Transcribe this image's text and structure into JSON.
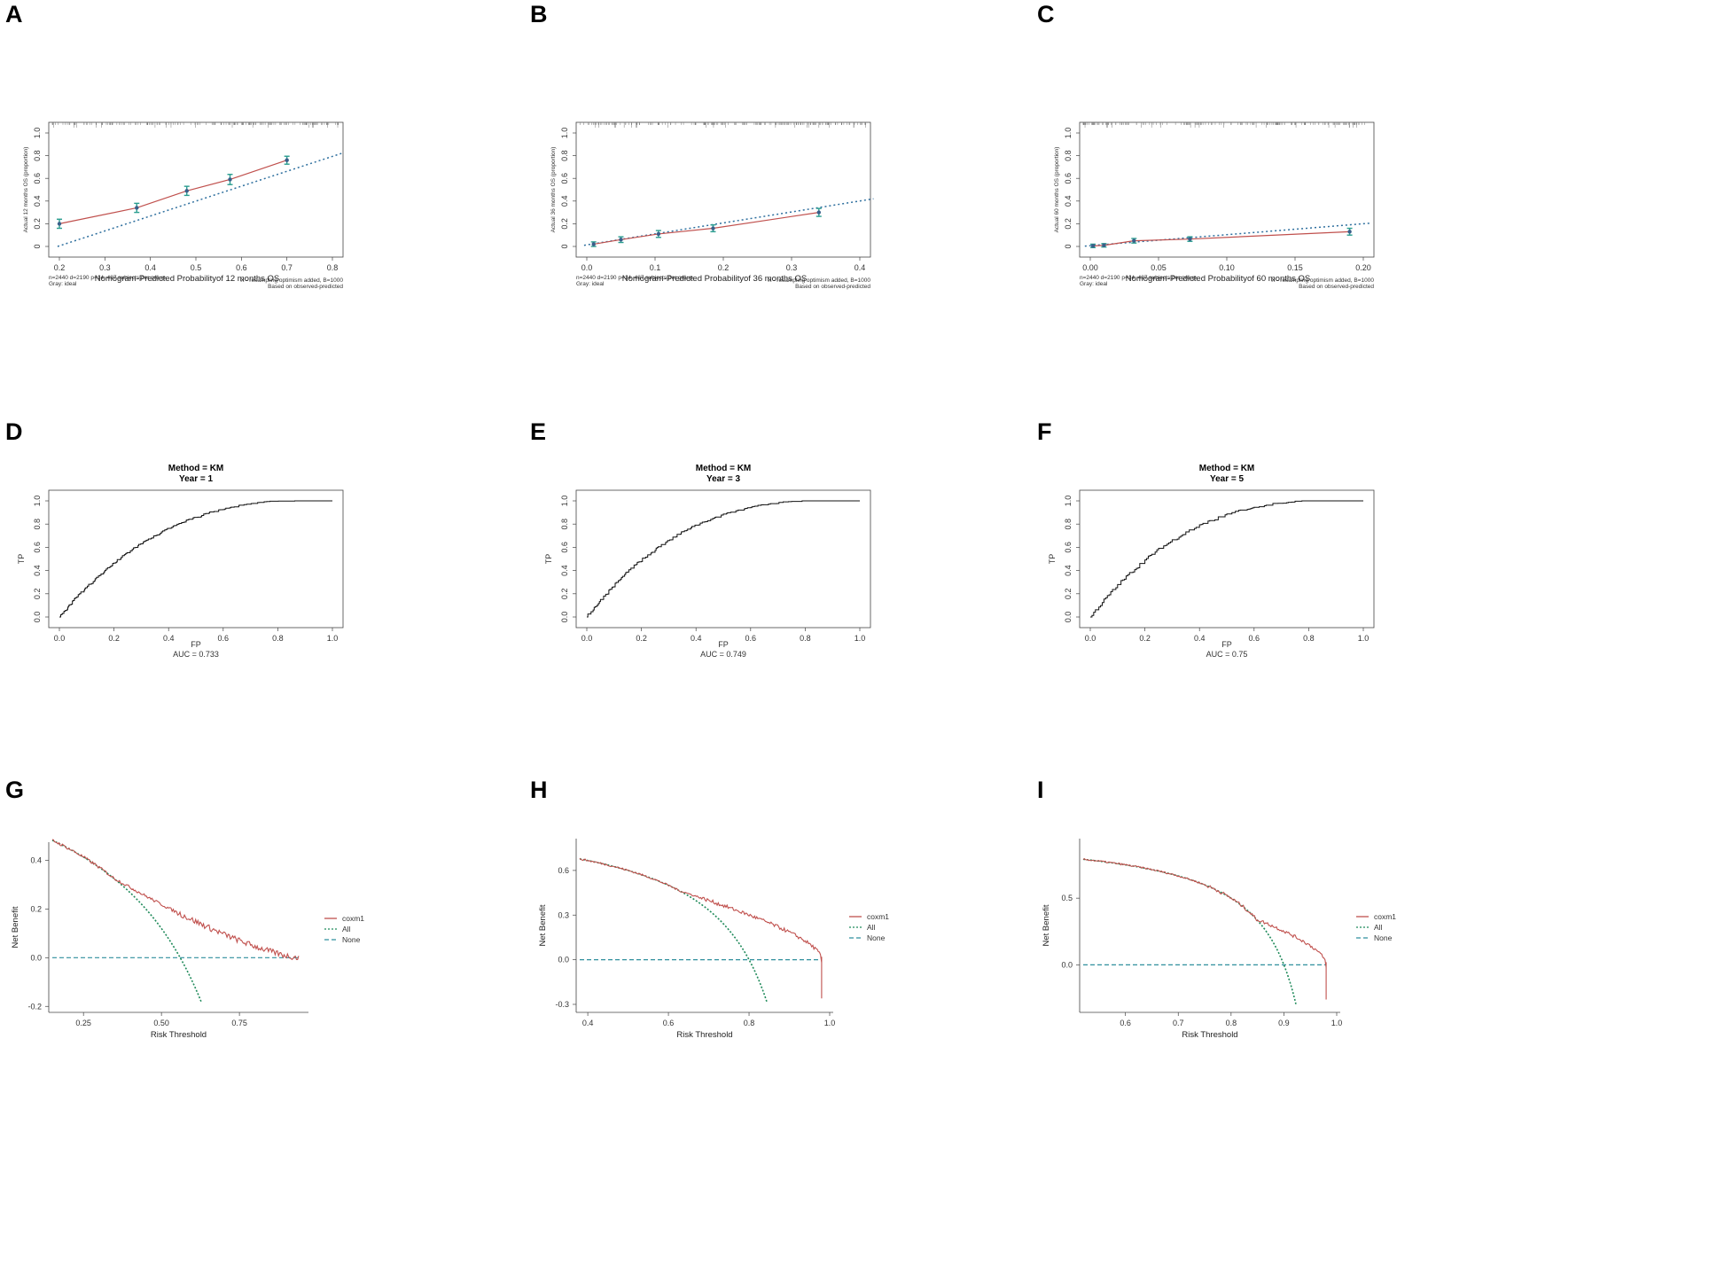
{
  "panels": [
    {
      "letter": "A",
      "type": "calibration",
      "months": "12",
      "ylabel": "Actual 12 months OS (proportion)",
      "xlabel": "Nomogram-Predicted Probabilityof 12 months OS",
      "note_left1": "n=2440 d=2190 p=14, 487 subjects per group",
      "note_left2": "Gray: ideal",
      "note_right1": "X - resampling optimism added, B=1000",
      "note_right2": "Based on observed-predicted",
      "xlim": [
        0.2,
        0.8
      ],
      "ylim": [
        0,
        1
      ],
      "xticks": [
        "0.2",
        "0.3",
        "0.4",
        "0.5",
        "0.6",
        "0.7",
        "0.8"
      ],
      "yticks": [
        "0",
        "0.2",
        "0.4",
        "0.6",
        "0.8",
        "1.0"
      ],
      "points": [
        [
          0.2,
          0.2
        ],
        [
          0.37,
          0.34
        ],
        [
          0.48,
          0.49
        ],
        [
          0.575,
          0.59
        ],
        [
          0.7,
          0.76
        ]
      ],
      "err": [
        0.04,
        0.04,
        0.04,
        0.045,
        0.035
      ],
      "ideal_end": [
        0.82,
        0.82
      ]
    },
    {
      "letter": "B",
      "type": "calibration",
      "months": "36",
      "ylabel": "Actual 36 months OS (proportion)",
      "xlabel": "Nomogram-Predicted Probabilityof 36 months OS",
      "note_left1": "n=2440 d=2190 p=14, 487 subjects per group",
      "note_left2": "Gray: ideal",
      "note_right1": "X - resampling optimism added, B=1000",
      "note_right2": "Based on observed-predicted",
      "xlim": [
        0,
        0.4
      ],
      "ylim": [
        0,
        1
      ],
      "xticks": [
        "0.0",
        "0.1",
        "0.2",
        "0.3",
        "0.4"
      ],
      "yticks": [
        "0",
        "0.2",
        "0.4",
        "0.6",
        "0.8",
        "1.0"
      ],
      "points": [
        [
          0.01,
          0.02
        ],
        [
          0.05,
          0.06
        ],
        [
          0.105,
          0.11
        ],
        [
          0.185,
          0.16
        ],
        [
          0.34,
          0.3
        ]
      ],
      "err": [
        0.02,
        0.025,
        0.03,
        0.03,
        0.035
      ],
      "ideal_end": [
        0.42,
        0.42
      ]
    },
    {
      "letter": "C",
      "type": "calibration",
      "months": "60",
      "ylabel": "Actual 60 months OS (proportion)",
      "xlabel": "Nomogram-Predicted Probabilityof 60 months OS",
      "note_left1": "n=2440 d=2190 p=14, 487 subjects per group",
      "note_left2": "Gray: ideal",
      "note_right1": "X - resampling optimism added, B=1000",
      "note_right2": "Based on observed-predicted",
      "xlim": [
        0,
        0.2
      ],
      "ylim": [
        0,
        1
      ],
      "xticks": [
        "0.00",
        "0.05",
        "0.10",
        "0.15",
        "0.20"
      ],
      "yticks": [
        "0",
        "0.2",
        "0.4",
        "0.6",
        "0.8",
        "1.0"
      ],
      "points": [
        [
          0.002,
          0.005
        ],
        [
          0.01,
          0.01
        ],
        [
          0.032,
          0.05
        ],
        [
          0.073,
          0.065
        ],
        [
          0.19,
          0.13
        ]
      ],
      "err": [
        0.015,
        0.015,
        0.02,
        0.02,
        0.03
      ],
      "ideal_end": [
        0.205,
        0.205
      ]
    },
    {
      "letter": "D",
      "type": "roc",
      "title1": "Method = KM",
      "title2": "Year = 1",
      "xlabel": "FP",
      "ylabel": "TP",
      "auc": "AUC = 0.733",
      "auc_val": 0.733,
      "xticks": [
        "0.0",
        "0.2",
        "0.4",
        "0.6",
        "0.8",
        "1.0"
      ],
      "yticks": [
        "0.0",
        "0.2",
        "0.4",
        "0.6",
        "0.8",
        "1.0"
      ]
    },
    {
      "letter": "E",
      "type": "roc",
      "title1": "Method = KM",
      "title2": "Year = 3",
      "xlabel": "FP",
      "ylabel": "TP",
      "auc": "AUC = 0.749",
      "auc_val": 0.749,
      "xticks": [
        "0.0",
        "0.2",
        "0.4",
        "0.6",
        "0.8",
        "1.0"
      ],
      "yticks": [
        "0.0",
        "0.2",
        "0.4",
        "0.6",
        "0.8",
        "1.0"
      ]
    },
    {
      "letter": "F",
      "type": "roc",
      "title1": "Method = KM",
      "title2": "Year = 5",
      "xlabel": "FP",
      "ylabel": "TP",
      "auc": "AUC = 0.75",
      "auc_val": 0.75,
      "xticks": [
        "0.0",
        "0.2",
        "0.4",
        "0.6",
        "0.8",
        "1.0"
      ],
      "yticks": [
        "0.0",
        "0.2",
        "0.4",
        "0.6",
        "0.8",
        "1.0"
      ]
    },
    {
      "letter": "G",
      "type": "dca",
      "xlabel": "Risk Threshold",
      "ylabel": "Net Benefit",
      "xlim": [
        0.15,
        0.96
      ],
      "ylim": [
        -0.21,
        0.46
      ],
      "xticks": [
        [
          "0.25",
          0.25
        ],
        [
          "0.50",
          0.5
        ],
        [
          "0.75",
          0.75
        ]
      ],
      "yticks": [
        [
          "-0.2",
          -0.2
        ],
        [
          "0.0",
          0.0
        ],
        [
          "0.2",
          0.2
        ],
        [
          "0.4",
          0.4
        ]
      ],
      "prev": 0.56,
      "legend": [
        "coxm1",
        "All",
        "None"
      ]
    },
    {
      "letter": "H",
      "type": "dca",
      "xlabel": "Risk Threshold",
      "ylabel": "Net Benefit",
      "xlim": [
        0.38,
        1.0
      ],
      "ylim": [
        -0.33,
        0.79
      ],
      "xticks": [
        [
          "0.4",
          0.4
        ],
        [
          "0.6",
          0.6
        ],
        [
          "0.8",
          0.8
        ],
        [
          "1.0",
          1.0
        ]
      ],
      "yticks": [
        [
          "-0.3",
          -0.3
        ],
        [
          "0.0",
          0.0
        ],
        [
          "0.3",
          0.3
        ],
        [
          "0.6",
          0.6
        ]
      ],
      "prev": 0.8,
      "legend": [
        "coxm1",
        "All",
        "None"
      ]
    },
    {
      "letter": "I",
      "type": "dca",
      "xlabel": "Risk Threshold",
      "ylabel": "Net Benefit",
      "xlim": [
        0.52,
        1.0
      ],
      "ylim": [
        -0.33,
        0.92
      ],
      "xticks": [
        [
          "0.6",
          0.6
        ],
        [
          "0.7",
          0.7
        ],
        [
          "0.8",
          0.8
        ],
        [
          "0.9",
          0.9
        ],
        [
          "1.0",
          1.0
        ]
      ],
      "yticks": [
        [
          "0.0",
          0.0
        ],
        [
          "0.5",
          0.5
        ]
      ],
      "prev": 0.9,
      "legend": [
        "coxm1",
        "All",
        "None"
      ]
    }
  ],
  "colors": {
    "model_red": "#c0504d",
    "ideal_blue": "#2e6f9e",
    "err_teal": "#2a9d8f",
    "all_green": "#1f8a5a",
    "none_teal": "#2f8f9d",
    "roc_black": "#111111",
    "axis": "#444444"
  },
  "chart_data": [
    {
      "type": "line",
      "title": "",
      "xlabel": "Nomogram-Predicted Probabilityof 12 months OS",
      "ylabel": "Actual 12 months OS (proportion)",
      "xlim": [
        0.2,
        0.8
      ],
      "ylim": [
        0,
        1
      ],
      "series": [],
      "x": [
        0.2,
        0.37,
        0.48,
        0.575,
        0.7
      ],
      "values": [
        0.2,
        0.34,
        0.49,
        0.59,
        0.76
      ]
    },
    {
      "type": "line",
      "title": "",
      "xlabel": "Nomogram-Predicted Probabilityof 36 months OS",
      "ylabel": "Actual 36 months OS (proportion)",
      "xlim": [
        0,
        0.4
      ],
      "ylim": [
        0,
        1
      ],
      "x": [
        0.01,
        0.05,
        0.105,
        0.185,
        0.34
      ],
      "values": [
        0.02,
        0.06,
        0.11,
        0.16,
        0.3
      ]
    },
    {
      "type": "line",
      "title": "",
      "xlabel": "Nomogram-Predicted Probabilityof 60 months OS",
      "ylabel": "Actual 60 months OS (proportion)",
      "xlim": [
        0,
        0.2
      ],
      "ylim": [
        0,
        1
      ],
      "x": [
        0.002,
        0.01,
        0.032,
        0.073,
        0.19
      ],
      "values": [
        0.005,
        0.01,
        0.05,
        0.065,
        0.13
      ]
    },
    {
      "type": "line",
      "title": "Method = KM  Year = 1",
      "xlabel": "FP",
      "ylabel": "TP",
      "xlim": [
        0,
        1
      ],
      "ylim": [
        0,
        1
      ],
      "auc": 0.733
    },
    {
      "type": "line",
      "title": "Method = KM  Year = 3",
      "xlabel": "FP",
      "ylabel": "TP",
      "xlim": [
        0,
        1
      ],
      "ylim": [
        0,
        1
      ],
      "auc": 0.749
    },
    {
      "type": "line",
      "title": "Method = KM  Year = 5",
      "xlabel": "FP",
      "ylabel": "TP",
      "xlim": [
        0,
        1
      ],
      "ylim": [
        0,
        1
      ],
      "auc": 0.75
    },
    {
      "type": "line",
      "title": "",
      "xlabel": "Risk Threshold",
      "ylabel": "Net Benefit",
      "series": [
        {
          "name": "coxm1"
        },
        {
          "name": "All"
        },
        {
          "name": "None"
        }
      ]
    },
    {
      "type": "line",
      "title": "",
      "xlabel": "Risk Threshold",
      "ylabel": "Net Benefit",
      "series": [
        {
          "name": "coxm1"
        },
        {
          "name": "All"
        },
        {
          "name": "None"
        }
      ]
    },
    {
      "type": "line",
      "title": "",
      "xlabel": "Risk Threshold",
      "ylabel": "Net Benefit",
      "series": [
        {
          "name": "coxm1"
        },
        {
          "name": "All"
        },
        {
          "name": "None"
        }
      ]
    }
  ]
}
